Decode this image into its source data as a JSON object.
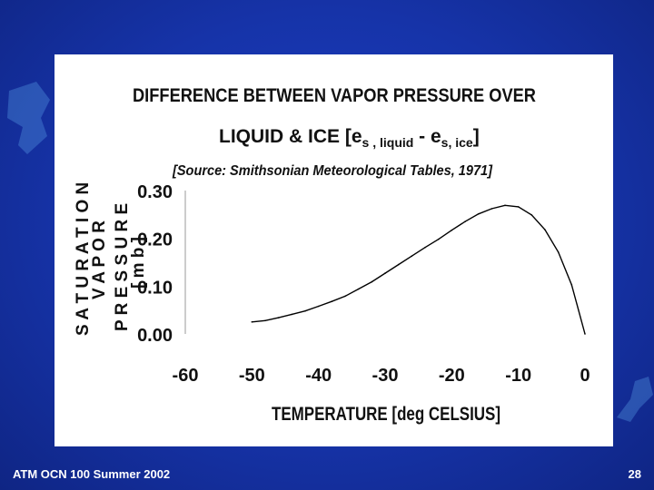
{
  "slide": {
    "footer_left": "ATM OCN 100 Summer 2002",
    "page_number": "28"
  },
  "chart_data": {
    "type": "line",
    "title_line1": "DIFFERENCE BETWEEN VAPOR PRESSURE OVER",
    "title_line2_prefix": "LIQUID & ICE [e",
    "title_sub_s1": "s",
    "title_sub_liquid": " , liquid",
    "title_minus": " - e",
    "title_sub_s2": "s",
    "title_sub_ice": ", ice",
    "title_close": "]",
    "subtitle": "[Source: Smithsonian Meteorological Tables, 1971]",
    "xlabel": "TEMPERATURE [deg CELSIUS]",
    "ylabel_line1": "S A T U R A T I O N",
    "ylabel_line2": "V A P O R",
    "ylabel_line3": "P R E S S U R E",
    "ylabel_line4": "[ m b ]",
    "xlim": [
      -60,
      0
    ],
    "ylim": [
      0.0,
      0.3
    ],
    "x_ticks": [
      "-60",
      "-50",
      "-40",
      "-30",
      "-20",
      "-10",
      "0"
    ],
    "x_tick_values": [
      -60,
      -50,
      -40,
      -30,
      -20,
      -10,
      0
    ],
    "y_ticks": [
      "0.00",
      "0.10",
      "0.20",
      "0.30"
    ],
    "y_tick_values": [
      0.0,
      0.1,
      0.2,
      0.3
    ],
    "series": [
      {
        "name": "es,liquid - es,ice",
        "x": [
          -50,
          -48,
          -46,
          -44,
          -42,
          -40,
          -38,
          -36,
          -34,
          -32,
          -30,
          -28,
          -26,
          -24,
          -22,
          -20,
          -18,
          -16,
          -14,
          -12,
          -10,
          -8,
          -6,
          -4,
          -2,
          0
        ],
        "y": [
          0.025,
          0.028,
          0.034,
          0.041,
          0.048,
          0.058,
          0.068,
          0.079,
          0.094,
          0.109,
          0.127,
          0.145,
          0.163,
          0.181,
          0.198,
          0.217,
          0.235,
          0.251,
          0.262,
          0.269,
          0.266,
          0.249,
          0.218,
          0.171,
          0.103,
          0.0
        ]
      }
    ]
  }
}
